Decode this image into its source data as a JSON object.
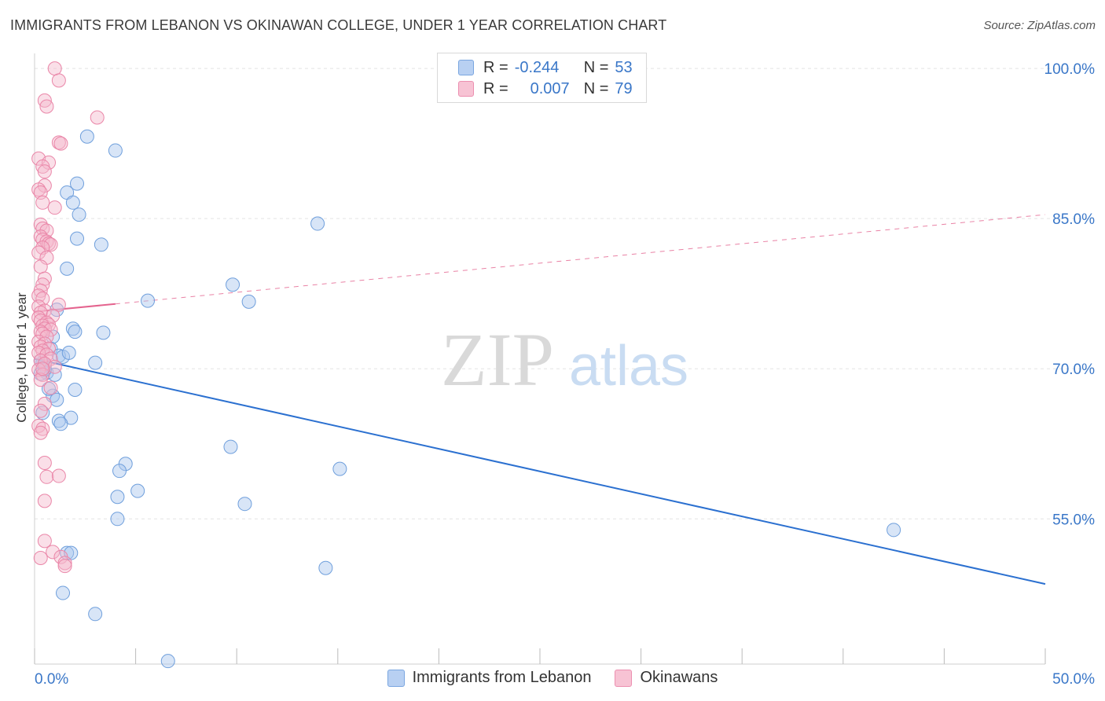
{
  "title": "IMMIGRANTS FROM LEBANON VS OKINAWAN COLLEGE, UNDER 1 YEAR CORRELATION CHART",
  "source": "Source: ZipAtlas.com",
  "watermark": {
    "zip": "ZIP",
    "atlas": "atlas"
  },
  "legend": {
    "rows": [
      {
        "r_label": "R =",
        "r_value": "-0.244",
        "n_label": "N =",
        "n_value": "53",
        "color": "#b8d0f2",
        "stroke": "#7aa6e0"
      },
      {
        "r_label": "R =",
        "r_value": "0.007",
        "n_label": "N =",
        "n_value": "79",
        "color": "#f7c3d4",
        "stroke": "#ec8fb0"
      }
    ]
  },
  "chart_data": {
    "type": "scatter",
    "title": "IMMIGRANTS FROM LEBANON VS OKINAWAN COLLEGE, UNDER 1 YEAR CORRELATION CHART",
    "ylabel": "College, Under 1 year",
    "xlabel": "",
    "xlim": [
      0,
      50
    ],
    "ylim": [
      40.5,
      101.5
    ],
    "x_tick_labels": [
      {
        "value": 0,
        "label": "0.0%"
      },
      {
        "value": 50,
        "label": "50.0%"
      }
    ],
    "y_tick_labels": [
      {
        "value": 100,
        "label": "100.0%"
      },
      {
        "value": 85,
        "label": "85.0%"
      },
      {
        "value": 70,
        "label": "70.0%"
      },
      {
        "value": 55,
        "label": "55.0%"
      }
    ],
    "x_minor_ticks": [
      0,
      5,
      10,
      15,
      20,
      25,
      30,
      35,
      40,
      45,
      50
    ],
    "grid_y": [
      100,
      85,
      70,
      55
    ],
    "series": [
      {
        "name": "Immigrants from Lebanon",
        "color": "#a9c6ee",
        "stroke": "#6f9fdc",
        "trend": {
          "x0": 0,
          "y0": 71.0,
          "x1": 50,
          "y1": 48.5,
          "color": "#2b70d0",
          "dashed_from": null
        },
        "points": [
          [
            2.6,
            93.2
          ],
          [
            4.0,
            91.8
          ],
          [
            2.1,
            88.5
          ],
          [
            1.6,
            87.6
          ],
          [
            1.9,
            86.6
          ],
          [
            2.2,
            85.4
          ],
          [
            14.0,
            84.5
          ],
          [
            2.1,
            83.0
          ],
          [
            3.3,
            82.4
          ],
          [
            1.6,
            80.0
          ],
          [
            9.8,
            78.4
          ],
          [
            5.6,
            76.8
          ],
          [
            10.6,
            76.7
          ],
          [
            1.1,
            75.9
          ],
          [
            1.9,
            74.0
          ],
          [
            2.0,
            73.7
          ],
          [
            3.4,
            73.6
          ],
          [
            0.9,
            73.2
          ],
          [
            0.8,
            72.0
          ],
          [
            1.2,
            71.3
          ],
          [
            1.4,
            71.2
          ],
          [
            3.0,
            70.6
          ],
          [
            0.4,
            70.6
          ],
          [
            0.5,
            70.3
          ],
          [
            0.6,
            69.6
          ],
          [
            0.3,
            69.5
          ],
          [
            1.0,
            69.4
          ],
          [
            2.0,
            67.9
          ],
          [
            0.9,
            67.3
          ],
          [
            1.1,
            66.9
          ],
          [
            0.4,
            65.6
          ],
          [
            1.8,
            65.1
          ],
          [
            1.2,
            64.8
          ],
          [
            1.3,
            64.5
          ],
          [
            9.7,
            62.2
          ],
          [
            4.5,
            60.5
          ],
          [
            15.1,
            60.0
          ],
          [
            4.2,
            59.8
          ],
          [
            5.1,
            57.8
          ],
          [
            4.1,
            57.2
          ],
          [
            10.4,
            56.5
          ],
          [
            4.1,
            55.0
          ],
          [
            42.5,
            53.9
          ],
          [
            1.6,
            51.6
          ],
          [
            1.8,
            51.6
          ],
          [
            14.4,
            50.1
          ],
          [
            1.4,
            47.6
          ],
          [
            3.0,
            45.5
          ],
          [
            6.6,
            40.8
          ],
          [
            0.3,
            70.8
          ],
          [
            0.5,
            69.9
          ],
          [
            1.7,
            71.6
          ],
          [
            0.7,
            68.0
          ]
        ]
      },
      {
        "name": "Okinawans",
        "color": "#f5b9cd",
        "stroke": "#ea86a8",
        "trend": {
          "x0": 0,
          "y0": 75.7,
          "x1": 50,
          "y1": 85.4,
          "color": "#e4638e",
          "dashed_from": 4.0
        },
        "points": [
          [
            1.0,
            100.0
          ],
          [
            1.2,
            98.8
          ],
          [
            0.5,
            96.8
          ],
          [
            0.6,
            96.2
          ],
          [
            3.1,
            95.1
          ],
          [
            1.2,
            92.6
          ],
          [
            1.3,
            92.5
          ],
          [
            0.2,
            91.0
          ],
          [
            0.7,
            90.6
          ],
          [
            0.4,
            90.2
          ],
          [
            0.5,
            89.7
          ],
          [
            0.5,
            88.3
          ],
          [
            0.2,
            87.9
          ],
          [
            0.3,
            87.6
          ],
          [
            0.4,
            86.6
          ],
          [
            1.0,
            86.1
          ],
          [
            0.3,
            84.4
          ],
          [
            0.4,
            84.0
          ],
          [
            0.6,
            83.8
          ],
          [
            0.3,
            83.2
          ],
          [
            0.4,
            82.9
          ],
          [
            0.6,
            82.7
          ],
          [
            0.7,
            82.5
          ],
          [
            0.8,
            82.4
          ],
          [
            0.4,
            82.1
          ],
          [
            0.2,
            81.6
          ],
          [
            0.6,
            81.1
          ],
          [
            0.3,
            80.2
          ],
          [
            0.5,
            79.0
          ],
          [
            0.4,
            78.4
          ],
          [
            0.3,
            77.8
          ],
          [
            0.2,
            77.3
          ],
          [
            0.4,
            77.0
          ],
          [
            1.2,
            76.4
          ],
          [
            0.2,
            76.2
          ],
          [
            0.5,
            75.8
          ],
          [
            0.3,
            75.6
          ],
          [
            0.9,
            75.3
          ],
          [
            0.2,
            75.1
          ],
          [
            0.3,
            74.8
          ],
          [
            0.6,
            74.6
          ],
          [
            0.7,
            74.4
          ],
          [
            0.4,
            74.3
          ],
          [
            0.5,
            74.0
          ],
          [
            0.8,
            73.9
          ],
          [
            0.3,
            73.7
          ],
          [
            0.4,
            73.5
          ],
          [
            0.6,
            73.2
          ],
          [
            0.2,
            72.7
          ],
          [
            0.5,
            72.5
          ],
          [
            0.3,
            72.2
          ],
          [
            0.7,
            72.0
          ],
          [
            0.4,
            71.8
          ],
          [
            0.2,
            71.6
          ],
          [
            0.6,
            71.4
          ],
          [
            0.8,
            71.0
          ],
          [
            0.3,
            70.8
          ],
          [
            0.5,
            70.5
          ],
          [
            1.0,
            70.2
          ],
          [
            0.2,
            69.9
          ],
          [
            0.4,
            69.4
          ],
          [
            0.3,
            68.9
          ],
          [
            0.8,
            68.1
          ],
          [
            0.5,
            66.5
          ],
          [
            0.3,
            65.8
          ],
          [
            0.2,
            64.3
          ],
          [
            0.4,
            64.0
          ],
          [
            0.3,
            63.6
          ],
          [
            0.5,
            60.6
          ],
          [
            0.6,
            59.2
          ],
          [
            1.2,
            59.3
          ],
          [
            0.5,
            56.8
          ],
          [
            0.5,
            52.8
          ],
          [
            0.9,
            51.7
          ],
          [
            0.3,
            51.1
          ],
          [
            1.3,
            51.2
          ],
          [
            1.5,
            50.6
          ],
          [
            1.5,
            50.3
          ],
          [
            0.4,
            70.0
          ]
        ]
      }
    ]
  },
  "bottom_legend": [
    {
      "label": "Immigrants from Lebanon",
      "color": "#b8d0f2",
      "stroke": "#7aa6e0"
    },
    {
      "label": "Okinawans",
      "color": "#f7c3d4",
      "stroke": "#ec8fb0"
    }
  ]
}
